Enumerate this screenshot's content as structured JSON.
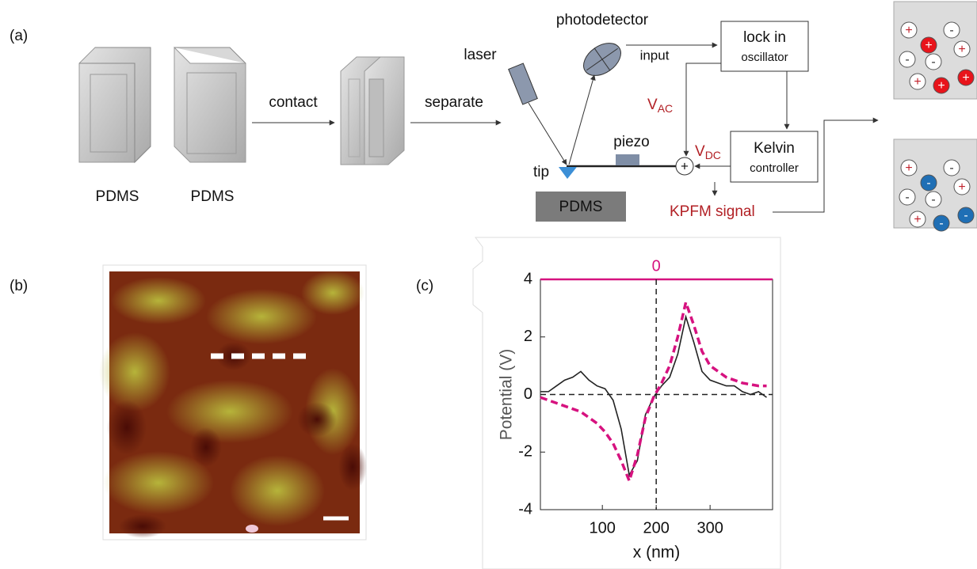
{
  "panels": {
    "a": "(a)",
    "b": "(b)",
    "c": "(c)"
  },
  "diagram": {
    "plate_labels": [
      "PDMS",
      "PDMS"
    ],
    "steps": [
      "contact",
      "separate"
    ],
    "laser": "laser",
    "photodetector": "photodetector",
    "input": "input",
    "lock_in": {
      "title": "lock in",
      "subtitle": "oscillator"
    },
    "v_ac": {
      "symbol": "V",
      "subscript": "AC"
    },
    "v_dc": {
      "symbol": "V",
      "subscript": "DC"
    },
    "sum_sign": "+",
    "piezo": "piezo",
    "tip": "tip",
    "sample": "PDMS",
    "kelvin": {
      "title": "Kelvin",
      "subtitle": "controller"
    },
    "kpfm_signal": "KPFM signal"
  },
  "charge_panels": [
    {
      "charges": [
        {
          "sign": "+",
          "color": "#ffffff"
        },
        {
          "sign": "+",
          "color": "#e8141b"
        },
        {
          "sign": "-",
          "color": "#ffffff"
        },
        {
          "sign": "-",
          "color": "#ffffff"
        },
        {
          "sign": "-",
          "color": "#ffffff"
        },
        {
          "sign": "+",
          "color": "#ffffff"
        },
        {
          "sign": "+",
          "color": "#ffffff"
        },
        {
          "sign": "+",
          "color": "#e8141b"
        },
        {
          "sign": "+",
          "color": "#e8141b"
        }
      ]
    },
    {
      "charges": [
        {
          "sign": "+",
          "color": "#ffffff"
        },
        {
          "sign": "-",
          "color": "#1f6fb5"
        },
        {
          "sign": "-",
          "color": "#ffffff"
        },
        {
          "sign": "-",
          "color": "#ffffff"
        },
        {
          "sign": "-",
          "color": "#ffffff"
        },
        {
          "sign": "+",
          "color": "#ffffff"
        },
        {
          "sign": "+",
          "color": "#ffffff"
        },
        {
          "sign": "-",
          "color": "#1f6fb5"
        },
        {
          "sign": "-",
          "color": "#1f6fb5"
        }
      ]
    }
  ],
  "chart_data": {
    "type": "line",
    "xlabel": "x (nm)",
    "ylabel": "Potential (V)",
    "x": [
      -15,
      0,
      15,
      30,
      45,
      60,
      75,
      90,
      105,
      120,
      135,
      150,
      165,
      180,
      195,
      210,
      225,
      240,
      255,
      270,
      285,
      300,
      315,
      330,
      345,
      360,
      375,
      390,
      405
    ],
    "series": [
      {
        "color": "#222222",
        "values": [
          0.1,
          0.1,
          0.3,
          0.5,
          0.6,
          0.8,
          0.5,
          0.3,
          0.2,
          -0.2,
          -1.2,
          -2.8,
          -2.3,
          -0.7,
          -0.1,
          0.3,
          0.6,
          1.4,
          2.7,
          1.8,
          0.8,
          0.5,
          0.4,
          0.3,
          0.3,
          0.1,
          0.0,
          0.1,
          -0.1
        ]
      },
      {
        "color": "#d6127f",
        "dashed": true,
        "values": [
          -0.1,
          -0.2,
          -0.3,
          -0.4,
          -0.5,
          -0.6,
          -0.8,
          -1.0,
          -1.3,
          -1.7,
          -2.3,
          -3.0,
          -2.1,
          -0.8,
          -0.1,
          0.4,
          1.0,
          2.0,
          3.2,
          2.4,
          1.5,
          1.0,
          0.8,
          0.6,
          0.5,
          0.4,
          0.35,
          0.3,
          0.3
        ]
      }
    ],
    "xlim": [
      -15,
      416
    ],
    "ylim": [
      -4,
      4
    ],
    "xticks": [
      100,
      200,
      300
    ],
    "yticks": [
      4,
      2,
      0,
      -2,
      -4
    ],
    "x2ticks": [
      {
        "value": 200,
        "label": "0"
      }
    ],
    "x2color": "#d6127f",
    "vline": 200,
    "hline": 0
  }
}
